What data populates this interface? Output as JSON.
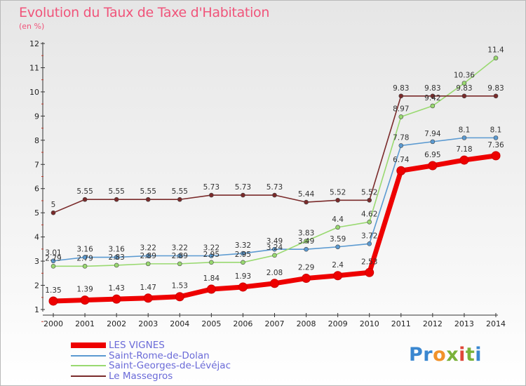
{
  "title": "Evolution du Taux de Taxe d'Habitation",
  "subtitle": "(en %)",
  "brand": {
    "letters": [
      "P",
      "r",
      "o",
      "x",
      "i",
      "t",
      "i"
    ],
    "colors": [
      "#3a87d0",
      "#3a87d0",
      "#f1922a",
      "#7ab23a",
      "#e0473a",
      "#7ab23a",
      "#3a87d0"
    ]
  },
  "chart_data": {
    "type": "line",
    "title": "Evolution du Taux de Taxe d'Habitation",
    "ylabel": "(en %)",
    "xlabel": "",
    "x": [
      "2000",
      "2001",
      "2002",
      "2003",
      "2004",
      "2005",
      "2006",
      "2007",
      "2008",
      "2009",
      "2010",
      "2011",
      "2012",
      "2013",
      "2014"
    ],
    "ylim": [
      1,
      12
    ],
    "yticks": [
      "1",
      "2",
      "3",
      "4",
      "5",
      "6",
      "7",
      "8",
      "9",
      "10",
      "11",
      "12"
    ],
    "grid": false,
    "legend_position": "bottom-left",
    "series": [
      {
        "name": "LES VIGNES",
        "color": "#ee0000",
        "bold": true,
        "values": [
          1.35,
          1.39,
          1.43,
          1.47,
          1.53,
          1.84,
          1.93,
          2.08,
          2.29,
          2.4,
          2.53,
          6.74,
          6.95,
          7.18,
          7.36
        ],
        "labels": [
          "1.35",
          "1.39",
          "1.43",
          "1.47",
          "1.53",
          "1.84",
          "1.93",
          "2.08",
          "2.29",
          "2.4",
          "2.53",
          "6.74",
          "6.95",
          "7.18",
          "7.36"
        ]
      },
      {
        "name": "Saint-Rome-de-Dolan",
        "color": "#5b9ad1",
        "bold": false,
        "values": [
          3.01,
          3.16,
          3.16,
          3.22,
          3.22,
          3.22,
          3.32,
          3.49,
          3.49,
          3.59,
          3.72,
          7.78,
          7.94,
          8.1,
          8.1
        ],
        "labels": [
          "3.01",
          "3.16",
          "3.16",
          "3.22",
          "3.22",
          "3.22",
          "3.32",
          "3.49",
          "3.49",
          "3.59",
          "3.72",
          "7.78",
          "7.94",
          "8.1",
          "8.1"
        ]
      },
      {
        "name": "Saint-Georges-de-Lévéjac",
        "color": "#99d970",
        "bold": false,
        "values": [
          2.79,
          2.79,
          2.83,
          2.89,
          2.89,
          2.95,
          2.95,
          3.24,
          3.83,
          4.4,
          4.62,
          8.97,
          9.42,
          10.36,
          11.4
        ],
        "labels": [
          "2.79",
          "2.79",
          "2.83",
          "2.89",
          "2.89",
          "2.95",
          "2.95",
          "3.24",
          "3.83",
          "4.4",
          "4.62",
          "8.97",
          "9.42",
          "10.36",
          "11.4"
        ]
      },
      {
        "name": "Le Massegros",
        "color": "#7a2a2a",
        "bold": false,
        "values": [
          5,
          5.55,
          5.55,
          5.55,
          5.55,
          5.73,
          5.73,
          5.73,
          5.44,
          5.52,
          5.52,
          9.83,
          9.83,
          9.83,
          9.83
        ],
        "labels": [
          "5",
          "5.55",
          "5.55",
          "5.55",
          "5.55",
          "5.73",
          "5.73",
          "5.73",
          "5.44",
          "5.52",
          "5.52",
          "9.83",
          "9.83",
          "9.83",
          "9.83"
        ]
      }
    ]
  }
}
